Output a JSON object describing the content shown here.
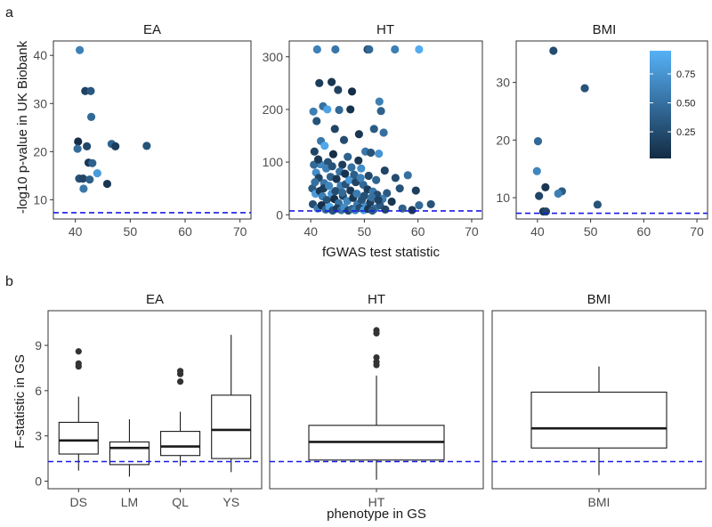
{
  "chart_data": [
    {
      "panel": "a",
      "type": "scatter",
      "xlabel": "fGWAS test statistic",
      "ylabel": "-log10 p-value in UK Biobank",
      "color_scale": {
        "low": "#132b43",
        "high": "#56b1f7",
        "ticks": [
          "0.25",
          "0.50",
          "0.75"
        ],
        "tick_values": [
          0.25,
          0.5,
          0.75
        ],
        "range": [
          0.02,
          0.95
        ]
      },
      "ref_y": 7.3,
      "facets": [
        {
          "name": "EA",
          "xlim": [
            36,
            72
          ],
          "ylim": [
            6,
            43
          ],
          "xticks": [
            40,
            50,
            60,
            70
          ],
          "yticks": [
            10,
            20,
            30,
            40
          ],
          "points": [
            [
              40.8,
              41.1,
              0.62
            ],
            [
              41.8,
              32.6,
              0.18
            ],
            [
              42.8,
              32.6,
              0.33
            ],
            [
              42.9,
              27.2,
              0.45
            ],
            [
              40.5,
              22.1,
              0.05
            ],
            [
              42.1,
              21.1,
              0.22
            ],
            [
              40.4,
              20.6,
              0.48
            ],
            [
              46.6,
              21.6,
              0.42
            ],
            [
              47.3,
              21.1,
              0.15
            ],
            [
              53.0,
              21.2,
              0.3
            ],
            [
              42.4,
              17.7,
              0.12
            ],
            [
              43.1,
              17.6,
              0.4
            ],
            [
              44.0,
              15.5,
              0.8
            ],
            [
              40.7,
              14.4,
              0.28
            ],
            [
              41.4,
              14.4,
              0.2
            ],
            [
              41.5,
              12.3,
              0.55
            ],
            [
              42.6,
              14.2,
              0.38
            ],
            [
              45.8,
              13.3,
              0.1
            ]
          ]
        },
        {
          "name": "HT",
          "xlim": [
            36,
            72
          ],
          "ylim": [
            -8,
            330
          ],
          "xticks": [
            40,
            50,
            60,
            70
          ],
          "yticks": [
            0,
            100,
            200,
            300
          ],
          "points": [
            [
              41.2,
              314,
              0.62
            ],
            [
              44.6,
              314,
              0.55
            ],
            [
              50.6,
              314,
              0.2
            ],
            [
              50.9,
              314,
              0.45
            ],
            [
              55.7,
              314,
              0.6
            ],
            [
              60.2,
              314,
              0.92
            ],
            [
              41.6,
              250,
              0.15
            ],
            [
              43.9,
              252,
              0.1
            ],
            [
              47.7,
              234,
              0.05
            ],
            [
              45.1,
              237,
              0.18
            ],
            [
              42.3,
              206,
              0.5
            ],
            [
              40.5,
              196,
              0.6
            ],
            [
              43.1,
              200,
              0.85
            ],
            [
              45.3,
              199,
              0.45
            ],
            [
              52.8,
              215,
              0.6
            ],
            [
              47.4,
              200,
              0.08
            ],
            [
              53.1,
              197,
              0.4
            ],
            [
              41.1,
              178,
              0.3
            ],
            [
              44.5,
              163,
              0.2
            ],
            [
              51.8,
              163,
              0.35
            ],
            [
              53.6,
              156,
              0.5
            ],
            [
              41.9,
              140,
              0.55
            ],
            [
              46.2,
              142,
              0.25
            ],
            [
              49.0,
              153,
              0.1
            ],
            [
              50.2,
              120,
              0.55
            ],
            [
              40.7,
              120,
              0.2
            ],
            [
              42.6,
              131,
              0.88
            ],
            [
              44.2,
              115,
              0.05
            ],
            [
              46.9,
              110,
              0.4
            ],
            [
              48.9,
              103,
              0.1
            ],
            [
              51.2,
              118,
              0.3
            ],
            [
              52.7,
              116,
              0.75
            ],
            [
              41.8,
              96,
              0.65
            ],
            [
              43.2,
              100,
              0.3
            ],
            [
              45.9,
              95,
              0.15
            ],
            [
              47.6,
              90,
              0.5
            ],
            [
              49.4,
              88,
              0.7
            ],
            [
              53.8,
              84,
              0.2
            ],
            [
              55.8,
              70,
              0.25
            ],
            [
              58.1,
              75,
              0.5
            ],
            [
              56.6,
              50,
              0.3
            ],
            [
              59.6,
              46,
              0.15
            ],
            [
              62.4,
              20,
              0.3
            ],
            [
              60.2,
              18,
              0.45
            ],
            [
              54.2,
              41,
              0.35
            ],
            [
              55.1,
              25,
              0.1
            ],
            [
              41.0,
              80,
              0.7
            ],
            [
              41.5,
              70,
              0.2
            ],
            [
              42.5,
              60,
              0.55
            ],
            [
              43.7,
              72,
              0.4
            ],
            [
              44.8,
              68,
              0.1
            ],
            [
              45.6,
              55,
              0.6
            ],
            [
              46.5,
              58,
              0.3
            ],
            [
              47.2,
              66,
              0.8
            ],
            [
              48.4,
              62,
              0.2
            ],
            [
              49.8,
              57,
              0.45
            ],
            [
              50.6,
              48,
              0.15
            ],
            [
              51.6,
              44,
              0.55
            ],
            [
              52.4,
              38,
              0.25
            ],
            [
              53.4,
              30,
              0.6
            ],
            [
              40.3,
              50,
              0.35
            ],
            [
              40.9,
              40,
              0.8
            ],
            [
              41.7,
              45,
              0.1
            ],
            [
              42.2,
              35,
              0.6
            ],
            [
              43.0,
              28,
              0.3
            ],
            [
              43.9,
              40,
              0.75
            ],
            [
              44.4,
              30,
              0.05
            ],
            [
              45.2,
              22,
              0.5
            ],
            [
              46.0,
              36,
              0.2
            ],
            [
              46.8,
              26,
              0.65
            ],
            [
              47.9,
              32,
              0.1
            ],
            [
              48.7,
              20,
              0.55
            ],
            [
              49.5,
              28,
              0.3
            ],
            [
              50.3,
              16,
              0.7
            ],
            [
              51.1,
              24,
              0.15
            ],
            [
              52.0,
              12,
              0.5
            ],
            [
              52.9,
              18,
              0.35
            ],
            [
              53.9,
              10,
              0.2
            ],
            [
              57.1,
              12,
              0.4
            ],
            [
              58.9,
              9,
              0.1
            ],
            [
              40.4,
              20,
              0.25
            ],
            [
              41.3,
              12,
              0.6
            ],
            [
              42.0,
              18,
              0.05
            ],
            [
              42.8,
              10,
              0.45
            ],
            [
              43.5,
              15,
              0.85
            ],
            [
              44.1,
              8,
              0.3
            ],
            [
              44.9,
              12,
              0.15
            ],
            [
              45.7,
              9,
              0.5
            ],
            [
              46.3,
              14,
              0.7
            ],
            [
              47.0,
              8,
              0.2
            ],
            [
              47.7,
              11,
              0.4
            ],
            [
              48.3,
              9,
              0.6
            ],
            [
              49.1,
              13,
              0.25
            ],
            [
              49.9,
              9,
              0.8
            ],
            [
              50.7,
              11,
              0.1
            ],
            [
              51.5,
              8,
              0.35
            ],
            [
              40.6,
              95,
              0.45
            ],
            [
              41.4,
              105,
              0.12
            ],
            [
              42.9,
              88,
              0.6
            ],
            [
              44.0,
              92,
              0.3
            ],
            [
              45.4,
              82,
              0.52
            ],
            [
              46.4,
              78,
              0.08
            ],
            [
              48.1,
              76,
              0.38
            ],
            [
              49.3,
              70,
              0.62
            ],
            [
              50.8,
              74,
              0.22
            ],
            [
              52.2,
              66,
              0.42
            ],
            [
              40.8,
              62,
              0.5
            ],
            [
              42.4,
              50,
              0.15
            ],
            [
              43.4,
              55,
              0.65
            ],
            [
              44.6,
              45,
              0.25
            ],
            [
              45.9,
              42,
              0.45
            ],
            [
              47.4,
              46,
              0.12
            ],
            [
              48.6,
              40,
              0.58
            ],
            [
              50.0,
              36,
              0.28
            ],
            [
              51.4,
              33,
              0.5
            ],
            [
              52.6,
              28,
              0.18
            ]
          ]
        },
        {
          "name": "BMI",
          "xlim": [
            36,
            72
          ],
          "ylim": [
            6.3,
            37.2
          ],
          "xticks": [
            40,
            50,
            60,
            70
          ],
          "yticks": [
            10,
            20,
            30
          ],
          "points": [
            [
              43.0,
              35.5,
              0.25
            ],
            [
              48.9,
              29.0,
              0.3
            ],
            [
              40.1,
              19.8,
              0.45
            ],
            [
              39.9,
              14.6,
              0.65
            ],
            [
              41.5,
              11.8,
              0.1
            ],
            [
              44.6,
              11.1,
              0.35
            ],
            [
              43.9,
              10.7,
              0.6
            ],
            [
              40.3,
              10.3,
              0.2
            ],
            [
              51.3,
              8.8,
              0.3
            ],
            [
              41.1,
              7.6,
              0.12
            ],
            [
              41.6,
              7.6,
              0.2
            ]
          ]
        }
      ]
    },
    {
      "panel": "b",
      "type": "box",
      "xlabel": "phenotype in GS",
      "ylabel": "F-statistic in GS",
      "ylim": [
        -0.5,
        11.3
      ],
      "yticks": [
        0,
        3,
        6,
        9
      ],
      "ref_y": 1.3,
      "facets": [
        {
          "name": "EA",
          "boxes": [
            {
              "category": "DS",
              "min": 0.7,
              "q1": 1.8,
              "median": 2.7,
              "q3": 3.9,
              "max": 5.6,
              "outliers": [
                7.6,
                7.8,
                8.6
              ]
            },
            {
              "category": "LM",
              "min": 0.3,
              "q1": 1.1,
              "median": 2.2,
              "q3": 2.6,
              "max": 4.1,
              "outliers": []
            },
            {
              "category": "QL",
              "min": 1.0,
              "q1": 1.7,
              "median": 2.3,
              "q3": 3.3,
              "max": 4.6,
              "outliers": [
                6.6,
                7.1,
                7.3
              ]
            },
            {
              "category": "YS",
              "min": 0.6,
              "q1": 1.5,
              "median": 3.4,
              "q3": 5.7,
              "max": 9.7,
              "outliers": []
            }
          ]
        },
        {
          "name": "HT",
          "boxes": [
            {
              "category": "HT",
              "min": 0.1,
              "q1": 1.4,
              "median": 2.6,
              "q3": 3.7,
              "max": 7.0,
              "outliers": [
                7.7,
                7.9,
                8.2,
                9.8,
                10.0
              ]
            }
          ]
        },
        {
          "name": "BMI",
          "boxes": [
            {
              "category": "BMI",
              "min": 0.4,
              "q1": 2.2,
              "median": 3.5,
              "q3": 5.9,
              "max": 7.6,
              "outliers": []
            }
          ]
        }
      ]
    }
  ]
}
